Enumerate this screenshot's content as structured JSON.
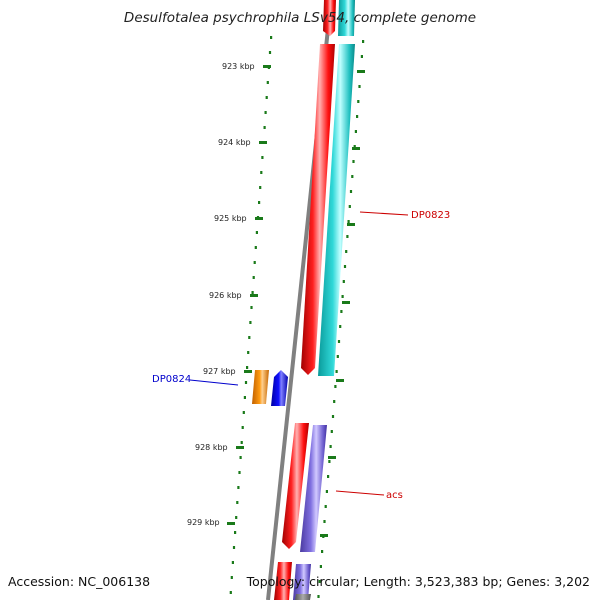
{
  "title": "Desulfotalea psychrophila LSv54, complete genome",
  "footer": {
    "accession": "Accession: NC_006138",
    "summary": "Topology: circular; Length: 3,523,383 bp; Genes: 3,202"
  },
  "ticks": [
    "923 kbp",
    "924 kbp",
    "925 kbp",
    "926 kbp",
    "927 kbp",
    "928 kbp",
    "929 kbp"
  ],
  "gene_labels": [
    {
      "text": "DP0823",
      "color": "#cc0000"
    },
    {
      "text": "DP0824",
      "color": "#0000cc"
    },
    {
      "text": "acs",
      "color": "#cc0000"
    }
  ],
  "colors": {
    "backbone": "#808080",
    "cds_red": "#ff0000",
    "cds_cyan": "#20c8c8",
    "cds_purple": "#7b68d0",
    "cds_blue": "#0000ee",
    "cds_orange": "#f08c00",
    "tick_green": "#1a7a1a"
  }
}
